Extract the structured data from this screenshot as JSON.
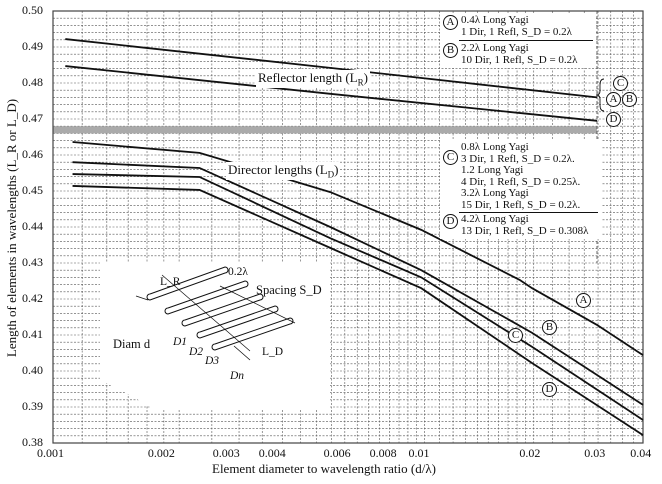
{
  "chart_data": {
    "type": "line",
    "title": "",
    "xlabel": "Element diameter to wavelength ratio (d/λ)",
    "ylabel": "Length of elements in wavelengths (L_R or L_D)",
    "xscale": "log",
    "xlim": [
      0.001,
      0.04
    ],
    "ylim": [
      0.38,
      0.5
    ],
    "grid": true,
    "xticks": [
      "0.001",
      "0.002",
      "0.003",
      "0.004",
      "0.006",
      "0.008",
      "0.01",
      "0.02",
      "0.03",
      "0.04"
    ],
    "xtick_values": [
      0.001,
      0.002,
      0.003,
      0.004,
      0.006,
      0.008,
      0.01,
      0.02,
      0.03,
      0.04
    ],
    "yticks": [
      "0.50",
      "0.49",
      "0.48",
      "0.47",
      "0.46",
      "0.45",
      "0.44",
      "0.43",
      "0.42",
      "0.41",
      "0.40",
      "0.39",
      "0.38"
    ],
    "ytick_values": [
      0.5,
      0.49,
      0.48,
      0.47,
      0.46,
      0.45,
      0.44,
      0.43,
      0.42,
      0.41,
      0.4,
      0.39,
      0.38
    ],
    "series": [
      {
        "name": "Reflector A/B/C",
        "group": "reflector",
        "x": [
          0.00108,
          0.00566,
          0.03
        ],
        "y": [
          0.4922,
          0.4842,
          0.476
        ]
      },
      {
        "name": "Reflector D",
        "group": "reflector",
        "x": [
          0.00108,
          0.00566,
          0.03
        ],
        "y": [
          0.4847,
          0.477,
          0.4695
        ]
      },
      {
        "name": "A",
        "group": "director",
        "x": [
          0.00113,
          0.0025,
          0.00566,
          0.01,
          0.0185,
          0.02,
          0.03,
          0.04
        ],
        "y": [
          0.4636,
          0.4606,
          0.4497,
          0.4392,
          0.4253,
          0.423,
          0.4128,
          0.4044
        ]
      },
      {
        "name": "B",
        "group": "director",
        "x": [
          0.00113,
          0.0025,
          0.00566,
          0.01,
          0.02,
          0.04
        ],
        "y": [
          0.458,
          0.4564,
          0.44,
          0.428,
          0.4106,
          0.3906
        ]
      },
      {
        "name": "C",
        "group": "director",
        "x": [
          0.00113,
          0.0025,
          0.00566,
          0.01,
          0.02,
          0.04
        ],
        "y": [
          0.4547,
          0.4539,
          0.4369,
          0.426,
          0.4067,
          0.3864
        ]
      },
      {
        "name": "D",
        "group": "director",
        "x": [
          0.00113,
          0.0025,
          0.00566,
          0.01,
          0.02,
          0.04
        ],
        "y": [
          0.4514,
          0.4503,
          0.4342,
          0.423,
          0.4022,
          0.3822
        ]
      }
    ],
    "separator_band": [
      0.466,
      0.468
    ],
    "annotations": {
      "reflector_label": "Reflector length (L",
      "reflector_sub": "R",
      "director_label": "Director lengths (L",
      "director_sub": "D",
      "close_paren": ")"
    },
    "curve_labels": [
      "A",
      "B",
      "C",
      "D"
    ],
    "legend": [
      {
        "key": "A",
        "lines": [
          "0.4λ Long Yagi",
          "1 Dir, 1 Refl, S_D = 0.2λ"
        ]
      },
      {
        "key": "B",
        "lines": [
          "2.2λ Long Yagi",
          "10 Dir, 1 Refl, S_D = 0.2λ"
        ]
      },
      {
        "key": "C",
        "lines": [
          "0.8λ Long Yagi",
          "3 Dir, 1 Refl, S_D = 0.2λ.",
          "1.2 Long Yagi",
          "4 Dir, 1 Refl, S_D = 0.25λ.",
          "3.2λ Long Yagi",
          "15 Dir, 1 Refl, S_D = 0.2λ."
        ]
      },
      {
        "key": "D",
        "lines": [
          "4.2λ Long Yagi",
          "13 Dir, 1 Refl, S_D = 0.308λ"
        ]
      }
    ],
    "inset": {
      "lr": "L_R",
      "ld": "L_D",
      "spacing_value": "0.2λ",
      "spacing_label": "Spacing S_D",
      "diam": "Diam d",
      "elements": [
        "D1",
        "D2",
        "D3",
        "Dn"
      ]
    }
  }
}
